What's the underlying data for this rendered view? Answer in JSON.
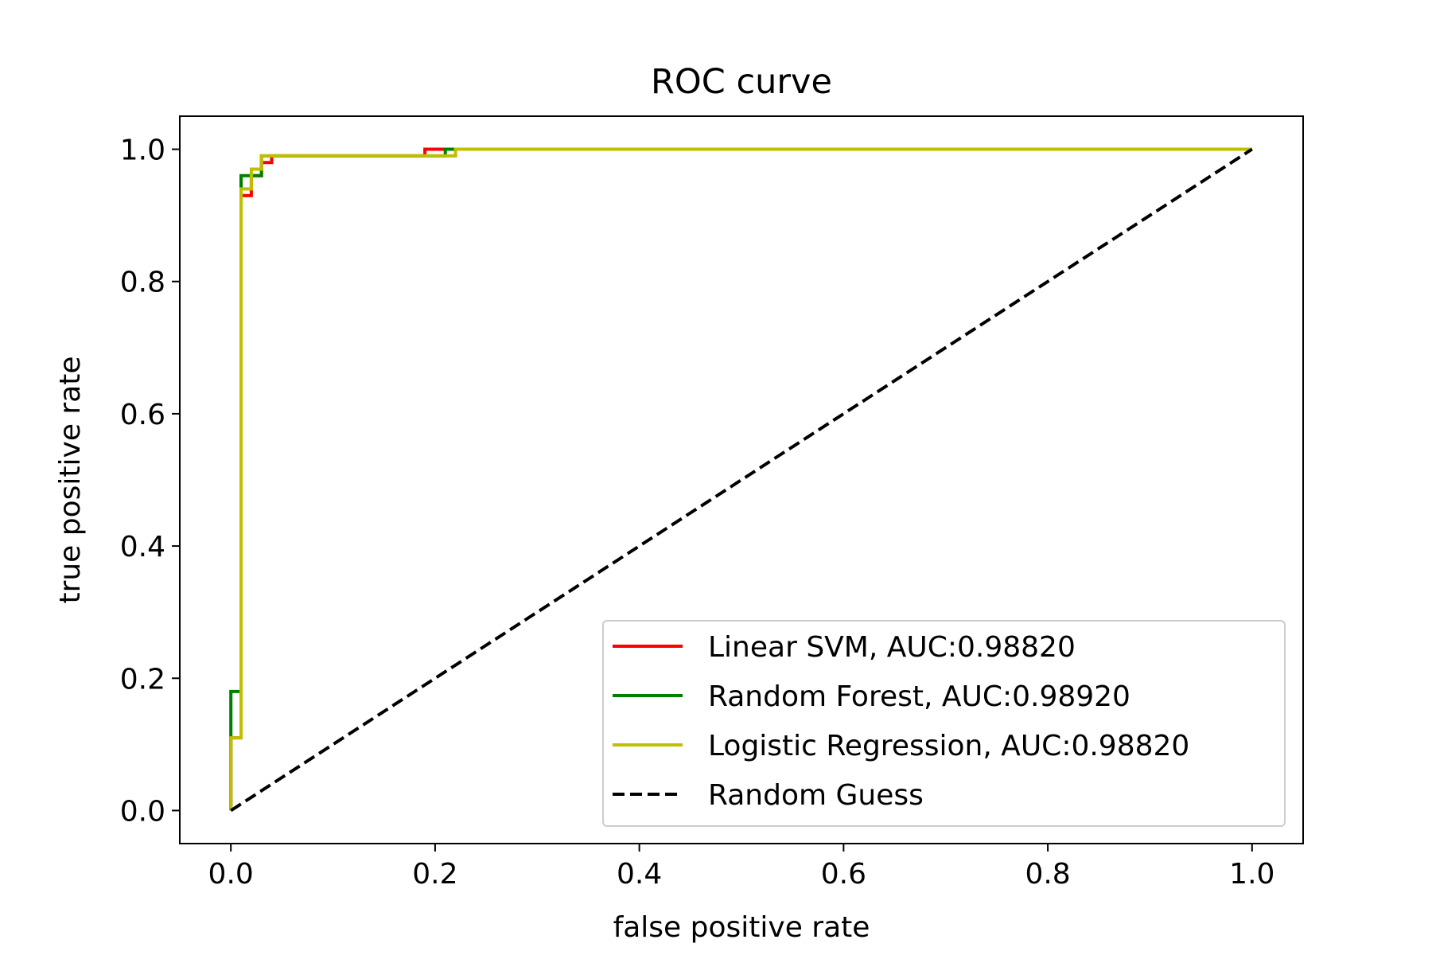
{
  "chart_data": {
    "type": "line",
    "title": "ROC curve",
    "xlabel": "false positive rate",
    "ylabel": "true positive rate",
    "xlim": [
      -0.05,
      1.05
    ],
    "ylim": [
      -0.05,
      1.05
    ],
    "grid": false,
    "x_ticks": [
      0.0,
      0.2,
      0.4,
      0.6,
      0.8,
      1.0
    ],
    "x_tick_labels": [
      "0.0",
      "0.2",
      "0.4",
      "0.6",
      "0.8",
      "1.0"
    ],
    "y_ticks": [
      0.0,
      0.2,
      0.4,
      0.6,
      0.8,
      1.0
    ],
    "y_tick_labels": [
      "0.0",
      "0.2",
      "0.4",
      "0.6",
      "0.8",
      "1.0"
    ],
    "legend_position": "lower-right",
    "series": [
      {
        "name": "Linear SVM, AUC:0.98820",
        "color": "#ff0000",
        "dash": "solid",
        "x": [
          0.0,
          0.0,
          0.0,
          0.01,
          0.01,
          0.01,
          0.01,
          0.02,
          0.02,
          0.03,
          0.03,
          0.04,
          0.04,
          0.19,
          0.19,
          1.0
        ],
        "y": [
          0.0,
          0.11,
          0.11,
          0.11,
          0.94,
          0.94,
          0.93,
          0.93,
          0.96,
          0.96,
          0.98,
          0.98,
          0.99,
          0.99,
          1.0,
          1.0
        ]
      },
      {
        "name": "Random Forest, AUC:0.98920",
        "color": "#008000",
        "dash": "solid",
        "x": [
          0.0,
          0.0,
          0.0,
          0.01,
          0.01,
          0.03,
          0.03,
          0.21,
          0.21,
          1.0
        ],
        "y": [
          0.0,
          0.18,
          0.18,
          0.18,
          0.96,
          0.96,
          0.99,
          0.99,
          1.0,
          1.0
        ]
      },
      {
        "name": "Logistic Regression, AUC:0.98820",
        "color": "#bfbf00",
        "dash": "solid",
        "x": [
          0.0,
          0.0,
          0.01,
          0.01,
          0.02,
          0.02,
          0.03,
          0.03,
          0.22,
          0.22,
          1.0
        ],
        "y": [
          0.0,
          0.11,
          0.11,
          0.94,
          0.94,
          0.97,
          0.97,
          0.99,
          0.99,
          1.0,
          1.0
        ]
      },
      {
        "name": "Random Guess",
        "color": "#000000",
        "dash": "dashed",
        "x": [
          0.0,
          1.0
        ],
        "y": [
          0.0,
          1.0
        ]
      }
    ]
  }
}
